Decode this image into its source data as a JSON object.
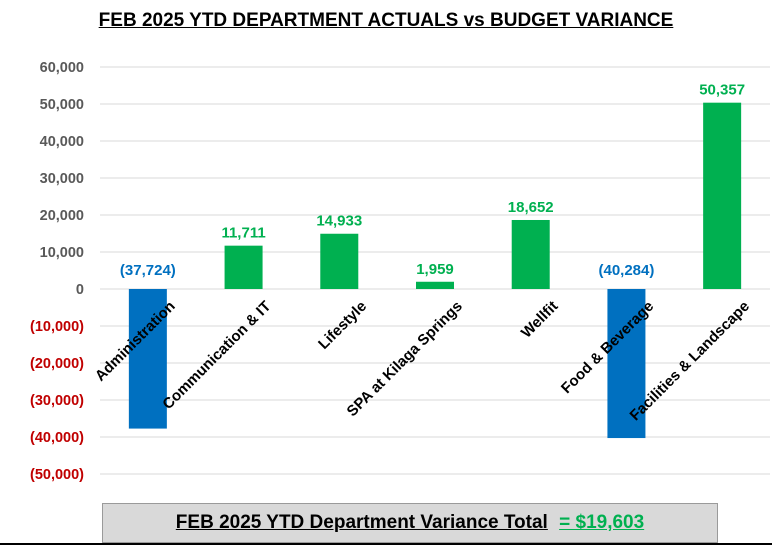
{
  "chart_data": {
    "type": "bar",
    "title": "FEB 2025 YTD DEPARTMENT ACTUALS vs BUDGET VARIANCE",
    "categories": [
      "Administration",
      "Communication & IT",
      "Lifestyle",
      "SPA at Kilaga Springs",
      "Wellfit",
      "Food & Beverage",
      "Facilities & Landscape"
    ],
    "values": [
      -37724,
      11711,
      14933,
      1959,
      18652,
      -40284,
      50357
    ],
    "data_labels": [
      "(37,724)",
      "11,711",
      "14,933",
      "1,959",
      "18,652",
      "(40,284)",
      "50,357"
    ],
    "ylim": [
      -50000,
      60000
    ],
    "yticks": [
      60000,
      50000,
      40000,
      30000,
      20000,
      10000,
      0,
      -10000,
      -20000,
      -30000,
      -40000,
      -50000
    ],
    "ytick_labels": [
      "60,000",
      "50,000",
      "40,000",
      "30,000",
      "20,000",
      "10,000",
      "0",
      "(10,000)",
      "(20,000)",
      "(30,000)",
      "(40,000)",
      "(50,000)"
    ],
    "grid": true,
    "colors": {
      "positive_bar": "#00b050",
      "negative_bar": "#0070c0",
      "positive_label": "#00b050",
      "negative_label": "#0070c0",
      "positive_tick": "#595959",
      "negative_tick": "#c00000",
      "grid": "#d9d9d9"
    }
  },
  "summary": {
    "label": "FEB 2025 YTD Department Variance Total",
    "value": "= $19,603"
  }
}
